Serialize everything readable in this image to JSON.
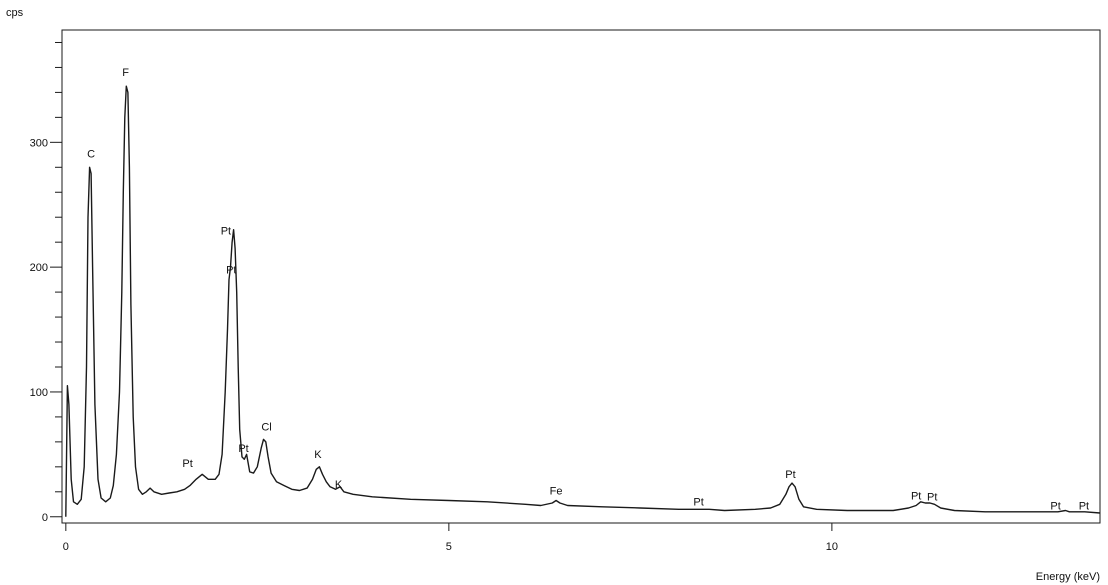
{
  "chart_data": {
    "type": "line",
    "title": "",
    "ylabel": "cps",
    "xlabel": "Energy (keV)",
    "xlim": [
      -0.05,
      13.5
    ],
    "ylim": [
      -5,
      390
    ],
    "x_ticks": [
      0,
      5,
      10
    ],
    "y_ticks": [
      0,
      100,
      200,
      300
    ],
    "grid": false,
    "legend": "none",
    "series": [
      {
        "values": [
          [
            0.0,
            0
          ],
          [
            0.02,
            105
          ],
          [
            0.04,
            90
          ],
          [
            0.07,
            30
          ],
          [
            0.1,
            12
          ],
          [
            0.15,
            10
          ],
          [
            0.2,
            14
          ],
          [
            0.24,
            40
          ],
          [
            0.27,
            120
          ],
          [
            0.29,
            240
          ],
          [
            0.31,
            280
          ],
          [
            0.33,
            275
          ],
          [
            0.35,
            200
          ],
          [
            0.38,
            90
          ],
          [
            0.42,
            30
          ],
          [
            0.46,
            15
          ],
          [
            0.52,
            12
          ],
          [
            0.58,
            15
          ],
          [
            0.62,
            25
          ],
          [
            0.66,
            50
          ],
          [
            0.7,
            100
          ],
          [
            0.73,
            180
          ],
          [
            0.75,
            260
          ],
          [
            0.77,
            320
          ],
          [
            0.79,
            345
          ],
          [
            0.81,
            340
          ],
          [
            0.83,
            280
          ],
          [
            0.85,
            170
          ],
          [
            0.88,
            80
          ],
          [
            0.91,
            40
          ],
          [
            0.95,
            22
          ],
          [
            1.0,
            18
          ],
          [
            1.05,
            20
          ],
          [
            1.1,
            23
          ],
          [
            1.15,
            20
          ],
          [
            1.25,
            18
          ],
          [
            1.35,
            19
          ],
          [
            1.45,
            20
          ],
          [
            1.55,
            22
          ],
          [
            1.62,
            25
          ],
          [
            1.7,
            30
          ],
          [
            1.78,
            34
          ],
          [
            1.86,
            30
          ],
          [
            1.95,
            30
          ],
          [
            2.0,
            34
          ],
          [
            2.04,
            50
          ],
          [
            2.08,
            100
          ],
          [
            2.11,
            150
          ],
          [
            2.13,
            190
          ],
          [
            2.15,
            200
          ],
          [
            2.17,
            220
          ],
          [
            2.19,
            230
          ],
          [
            2.21,
            215
          ],
          [
            2.23,
            180
          ],
          [
            2.25,
            120
          ],
          [
            2.27,
            70
          ],
          [
            2.3,
            48
          ],
          [
            2.33,
            46
          ],
          [
            2.36,
            50
          ],
          [
            2.4,
            36
          ],
          [
            2.45,
            35
          ],
          [
            2.5,
            40
          ],
          [
            2.55,
            55
          ],
          [
            2.58,
            62
          ],
          [
            2.61,
            60
          ],
          [
            2.64,
            48
          ],
          [
            2.68,
            35
          ],
          [
            2.75,
            28
          ],
          [
            2.85,
            25
          ],
          [
            2.95,
            22
          ],
          [
            3.05,
            21
          ],
          [
            3.15,
            23
          ],
          [
            3.22,
            30
          ],
          [
            3.27,
            38
          ],
          [
            3.31,
            40
          ],
          [
            3.35,
            34
          ],
          [
            3.4,
            28
          ],
          [
            3.45,
            24
          ],
          [
            3.52,
            22
          ],
          [
            3.58,
            24
          ],
          [
            3.63,
            20
          ],
          [
            3.75,
            18
          ],
          [
            4.0,
            16
          ],
          [
            4.5,
            14
          ],
          [
            5.0,
            13
          ],
          [
            5.5,
            12
          ],
          [
            6.0,
            10
          ],
          [
            6.2,
            9
          ],
          [
            6.35,
            11
          ],
          [
            6.4,
            13
          ],
          [
            6.45,
            11
          ],
          [
            6.55,
            9
          ],
          [
            7.0,
            8
          ],
          [
            7.5,
            7
          ],
          [
            8.0,
            6
          ],
          [
            8.4,
            6
          ],
          [
            8.6,
            5
          ],
          [
            9.0,
            6
          ],
          [
            9.2,
            7
          ],
          [
            9.32,
            10
          ],
          [
            9.4,
            18
          ],
          [
            9.44,
            24
          ],
          [
            9.48,
            27
          ],
          [
            9.52,
            24
          ],
          [
            9.57,
            14
          ],
          [
            9.63,
            8
          ],
          [
            9.8,
            6
          ],
          [
            10.2,
            5
          ],
          [
            10.8,
            5
          ],
          [
            11.0,
            7
          ],
          [
            11.1,
            9
          ],
          [
            11.16,
            12
          ],
          [
            11.22,
            11
          ],
          [
            11.28,
            11
          ],
          [
            11.34,
            10
          ],
          [
            11.42,
            7
          ],
          [
            11.6,
            5
          ],
          [
            12.0,
            4
          ],
          [
            12.5,
            4
          ],
          [
            12.95,
            4
          ],
          [
            13.05,
            5
          ],
          [
            13.1,
            4
          ],
          [
            13.3,
            4
          ],
          [
            13.5,
            3
          ]
        ]
      }
    ],
    "peak_labels": [
      {
        "label": "C",
        "x": 0.33,
        "y": 288
      },
      {
        "label": "F",
        "x": 0.78,
        "y": 353
      },
      {
        "label": "Pt",
        "x": 2.09,
        "y": 226
      },
      {
        "label": "Pt",
        "x": 2.16,
        "y": 195
      },
      {
        "label": "Pt",
        "x": 1.59,
        "y": 40
      },
      {
        "label": "Pt",
        "x": 2.32,
        "y": 52
      },
      {
        "label": "Cl",
        "x": 2.62,
        "y": 69
      },
      {
        "label": "K",
        "x": 3.29,
        "y": 47
      },
      {
        "label": "K",
        "x": 3.56,
        "y": 23
      },
      {
        "label": "Fe",
        "x": 6.4,
        "y": 18
      },
      {
        "label": "Pt",
        "x": 8.26,
        "y": 9
      },
      {
        "label": "Pt",
        "x": 9.46,
        "y": 31
      },
      {
        "label": "Pt",
        "x": 11.1,
        "y": 14
      },
      {
        "label": "Pt",
        "x": 11.31,
        "y": 13
      },
      {
        "label": "Pt",
        "x": 12.92,
        "y": 6
      },
      {
        "label": "Pt",
        "x": 13.29,
        "y": 6
      }
    ],
    "colors": {
      "line": "#1a1a1a",
      "axis": "#1a1a1a",
      "text": "#111111"
    }
  }
}
